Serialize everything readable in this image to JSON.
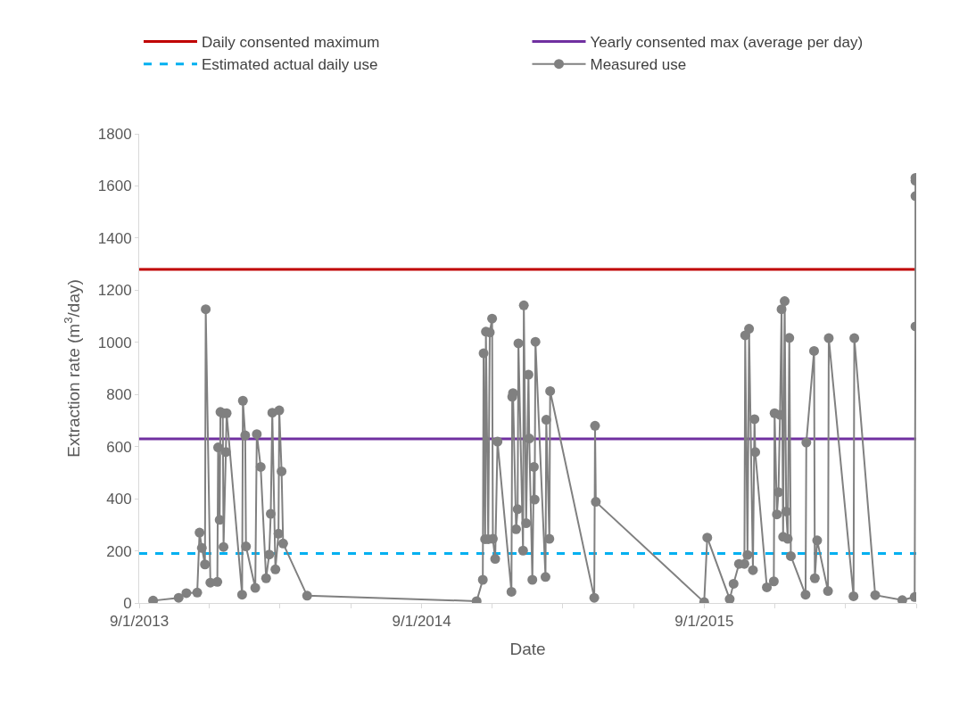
{
  "chart_data": {
    "type": "line",
    "xlabel": "Date",
    "ylabel": "Extraction rate (m$^{3}$/day)",
    "xlim": [
      "2013-09-01",
      "2016-06-01"
    ],
    "xticks": [
      {
        "value": "2013-09-01",
        "label": "9/1/2013"
      },
      {
        "value": "2013-12-01",
        "label": null
      },
      {
        "value": "2014-03-02",
        "label": null
      },
      {
        "value": "2014-06-02",
        "label": null
      },
      {
        "value": "2014-09-01",
        "label": "9/1/2014"
      },
      {
        "value": "2014-12-01",
        "label": null
      },
      {
        "value": "2015-03-02",
        "label": null
      },
      {
        "value": "2015-06-02",
        "label": null
      },
      {
        "value": "2015-09-01",
        "label": "9/1/2015"
      },
      {
        "value": "2015-12-01",
        "label": null
      },
      {
        "value": "2016-03-01",
        "label": null
      },
      {
        "value": "2016-06-01",
        "label": null
      }
    ],
    "ylim": [
      0,
      1800
    ],
    "yticks": [
      0,
      200,
      400,
      600,
      800,
      1000,
      1200,
      1400,
      1600,
      1800
    ],
    "legend": "top",
    "marker": "circle",
    "ref_lines": [
      {
        "axis": "y",
        "value": 1280,
        "label": "Daily consented maximum",
        "color": "#c00000",
        "line_style": "solid"
      },
      {
        "axis": "y",
        "value": 630,
        "label": "Yearly consented max (average per day)",
        "color": "#7030a0",
        "line_style": "solid"
      },
      {
        "axis": "y",
        "value": 190,
        "label": "Estimated actual daily use",
        "color": "#00b0f0",
        "line_style": "dashed"
      }
    ],
    "series": [
      {
        "name": "Measured use",
        "color": "#808080",
        "x": [
          "2013-09-19",
          "2013-10-22",
          "2013-11-01",
          "2013-11-15",
          "2013-11-18",
          "2013-11-21",
          "2013-11-25",
          "2013-11-26",
          "2013-12-02",
          "2013-12-11",
          "2013-12-12",
          "2013-12-14",
          "2013-12-15",
          "2013-12-18",
          "2013-12-19",
          "2013-12-22",
          "2013-12-23",
          "2014-01-12",
          "2014-01-13",
          "2014-01-16",
          "2014-01-17",
          "2014-01-29",
          "2014-01-31",
          "2014-02-05",
          "2014-02-12",
          "2014-02-16",
          "2014-02-18",
          "2014-02-20",
          "2014-02-24",
          "2014-02-28",
          "2014-03-01",
          "2014-03-04",
          "2014-03-06",
          "2014-04-06",
          "2014-11-11",
          "2014-11-19",
          "2014-11-20",
          "2014-11-22",
          "2014-11-23",
          "2014-11-26",
          "2014-11-28",
          "2014-12-01",
          "2014-12-02",
          "2014-12-05",
          "2014-12-08",
          "2014-12-26",
          "2014-12-27",
          "2014-12-28",
          "2015-01-01",
          "2015-01-03",
          "2015-01-04",
          "2015-01-10",
          "2015-01-11",
          "2015-01-14",
          "2015-01-17",
          "2015-01-18",
          "2015-01-22",
          "2015-01-24",
          "2015-01-25",
          "2015-01-26",
          "2015-02-08",
          "2015-02-09",
          "2015-02-13",
          "2015-02-14",
          "2015-04-12",
          "2015-04-13",
          "2015-04-14",
          "2015-09-01",
          "2015-09-05",
          "2015-10-04",
          "2015-10-09",
          "2015-10-16",
          "2015-10-23",
          "2015-10-24",
          "2015-10-27",
          "2015-10-29",
          "2015-11-03",
          "2015-11-05",
          "2015-11-06",
          "2015-11-21",
          "2015-11-30",
          "2015-12-01",
          "2015-12-04",
          "2015-12-06",
          "2015-12-08",
          "2015-12-10",
          "2015-12-12",
          "2015-12-14",
          "2015-12-16",
          "2015-12-18",
          "2015-12-20",
          "2015-12-22",
          "2016-01-10",
          "2016-01-11",
          "2016-01-21",
          "2016-01-22",
          "2016-01-25",
          "2016-02-08",
          "2016-02-09",
          "2016-03-12",
          "2016-03-13",
          "2016-04-09",
          "2016-05-14",
          "2016-05-30",
          "2016-05-31",
          "2016-05-31",
          "2016-05-31",
          "2016-05-31"
        ],
        "values": [
          9,
          20,
          38,
          40,
          270,
          211,
          148,
          1127,
          78,
          81,
          597,
          319,
          733,
          728,
          215,
          579,
          728,
          32,
          776,
          643,
          217,
          58,
          648,
          522,
          95,
          186,
          342,
          730,
          129,
          266,
          739,
          505,
          228,
          28,
          7,
          89,
          958,
          245,
          1041,
          245,
          1038,
          1091,
          246,
          169,
          619,
          43,
          791,
          805,
          283,
          360,
          996,
          201,
          1142,
          306,
          876,
          631,
          89,
          522,
          397,
          1002,
          100,
          703,
          246,
          813,
          20,
          680,
          388,
          3,
          251,
          15,
          74,
          150,
          150,
          1027,
          184,
          1052,
          126,
          705,
          579,
          60,
          83,
          728,
          340,
          425,
          722,
          1127,
          254,
          1158,
          351,
          246,
          1017,
          180,
          32,
          616,
          967,
          95,
          240,
          46,
          1016,
          26,
          1016,
          30,
          11,
          23,
          1061,
          1561,
          1620,
          1631
        ]
      }
    ]
  }
}
